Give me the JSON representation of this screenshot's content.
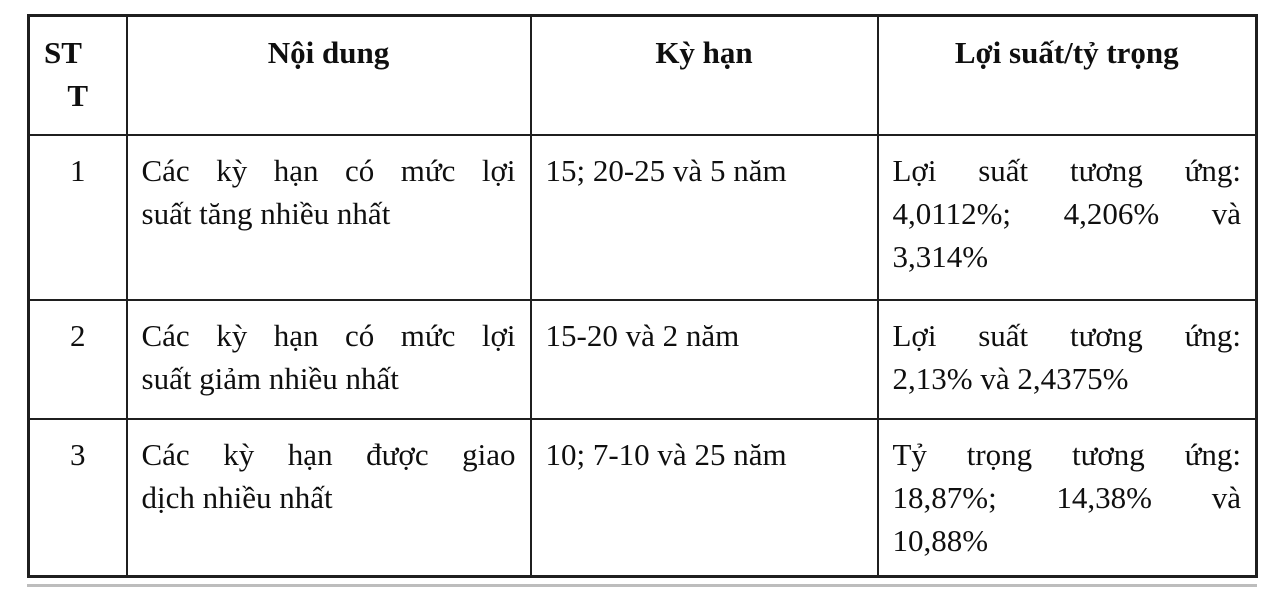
{
  "document": {
    "table": {
      "headers": {
        "stt_lines": [
          "ST",
          "T"
        ],
        "noidung": "Nội dung",
        "kyhan": "Kỳ hạn",
        "loisuat": "Lợi suất/tỷ trọng"
      },
      "rows": [
        {
          "stt": "1",
          "noidung_lines": [
            "Các kỳ hạn có mức lợi",
            "suất tăng nhiều nhất"
          ],
          "kyhan": "15; 20-25 và 5 năm",
          "loisuat_lines": [
            "Lợi suất tương ứng:",
            "4,0112%; 4,206% và",
            "3,314%"
          ]
        },
        {
          "stt": "2",
          "noidung_lines": [
            "Các kỳ hạn có mức lợi",
            "suất giảm nhiều nhất"
          ],
          "kyhan": "15-20 và 2 năm",
          "loisuat_lines": [
            "Lợi suất tương ứng:",
            "2,13% và 2,4375%"
          ]
        },
        {
          "stt": "3",
          "noidung_lines": [
            "Các kỳ hạn được giao",
            "dịch nhiều nhất"
          ],
          "kyhan": "10; 7-10 và 25 năm",
          "loisuat_lines": [
            "Tỷ trọng tương ứng:",
            "18,87%; 14,38% và",
            "10,88%"
          ]
        }
      ]
    },
    "colors": {
      "border": "#1f1f1f",
      "text": "#0f0f0f",
      "background": "#ffffff",
      "cutoff_line": "#bdbdbd"
    }
  }
}
